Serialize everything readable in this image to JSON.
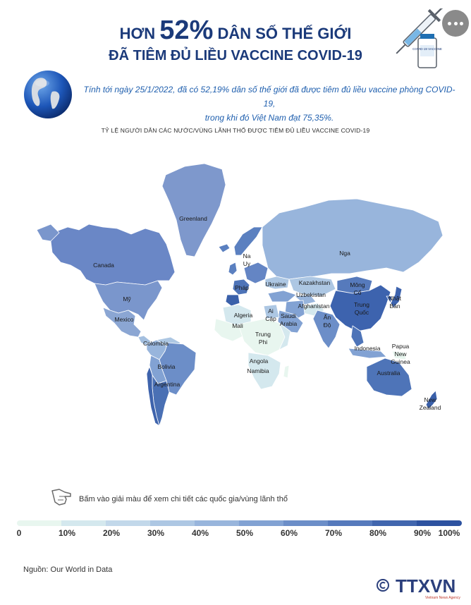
{
  "header": {
    "title_prefix": "HƠN",
    "title_big": "52%",
    "title_suffix": "DÂN SỐ THẾ GIỚI",
    "title_line2": "ĐÃ TIÊM ĐỦ LIỀU VACCINE COVID-19",
    "vial_label": "COVID-19 VACCINE"
  },
  "intro_line1": "Tính tới ngày 25/1/2022, đã có 52,19% dân số thế giới đã được tiêm đủ liều vaccine phòng COVID-19,",
  "intro_line2": "trong khi đó Việt Nam đạt 75,35%.",
  "map_title": "TỶ LỆ NGƯỜI DÂN CÁC NƯỚC/VÙNG LÃNH THỔ ĐƯỢC TIÊM ĐỦ LIỀU VACCINE COVID-19",
  "countries": {
    "greenland": "Greenland",
    "canada": "Canada",
    "usa": "Mỹ",
    "mexico": "Mexico",
    "colombia": "Colombia",
    "bolivia": "Bolivia",
    "argentina": "Argentina",
    "norway_1": "Na",
    "norway_2": "Uy",
    "ukraine": "Ukraine",
    "france": "Pháp",
    "russia": "Nga",
    "kazakhstan": "Kazakhstan",
    "uzbekistan": "Uzbekistan",
    "afghanistan": "Afghanistan",
    "mongolia_1": "Mông",
    "mongolia_2": "Cổ",
    "china_1": "Trung",
    "china_2": "Quốc",
    "japan_1": "Nhật",
    "japan_2": "Bản",
    "algeria": "Algeria",
    "mali": "Mali",
    "egypt_1": "Ai",
    "egypt_2": "Cập",
    "saudi_1": "Saudi",
    "saudi_2": "Arabia",
    "india_1": "Ấn",
    "india_2": "Độ",
    "car_1": "Trung",
    "car_2": "Phi",
    "angola": "Angola",
    "namibia": "Namibia",
    "indonesia": "Indonesia",
    "png_1": "Papua",
    "png_2": "New",
    "png_3": "Guinea",
    "australia": "Australia",
    "nz_1": "New",
    "nz_2": "Zealand"
  },
  "hint_text": "Bấm vào giải màu để xem chi tiết các quốc gia/vùng lãnh thổ",
  "legend": {
    "labels": [
      "0",
      "10%",
      "20%",
      "30%",
      "40%",
      "50%",
      "60%",
      "70%",
      "80%",
      "90%",
      "100%"
    ],
    "colors": [
      "#e8f6ef",
      "#d4e8ee",
      "#c2d8ea",
      "#adc7e3",
      "#98b5dc",
      "#82a2d3",
      "#6c8ec8",
      "#567abc",
      "#4166ae",
      "#2d52a0"
    ]
  },
  "source": "Nguồn: Our World in Data",
  "logo_text": "TTXVN",
  "logo_sub": "Vietnam News Agency"
}
